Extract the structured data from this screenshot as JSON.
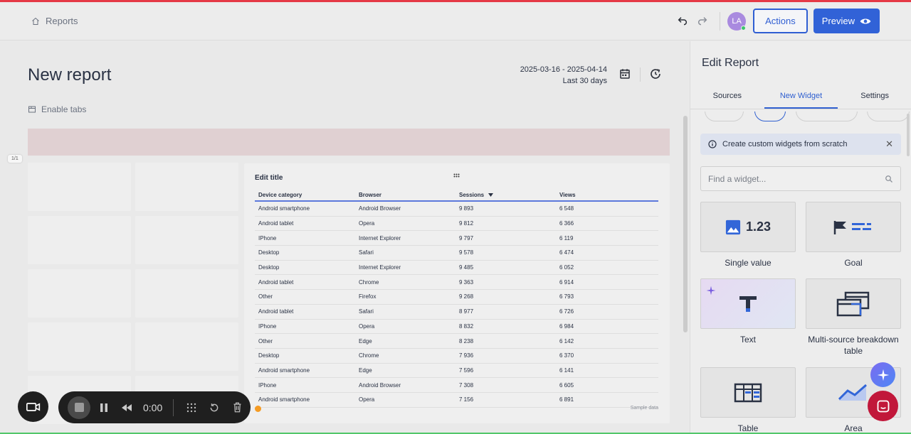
{
  "header": {
    "breadcrumb": "Reports",
    "avatar_initials": "LA",
    "actions_label": "Actions",
    "preview_label": "Preview"
  },
  "report": {
    "title": "New report",
    "date_range": "2025-03-16 - 2025-04-14",
    "date_preset": "Last 30 days",
    "enable_tabs_label": "Enable tabs",
    "page_indicator": "1/1"
  },
  "widget": {
    "title": "Edit title",
    "columns": [
      "Device category",
      "Browser",
      "Sessions",
      "Views"
    ],
    "rows": [
      [
        "Android smartphone",
        "Android Browser",
        "9 893",
        "6 548"
      ],
      [
        "Android tablet",
        "Opera",
        "9 812",
        "6 366"
      ],
      [
        "IPhone",
        "Internet Explorer",
        "9 797",
        "6 119"
      ],
      [
        "Desktop",
        "Safari",
        "9 578",
        "6 474"
      ],
      [
        "Desktop",
        "Internet Explorer",
        "9 485",
        "6 052"
      ],
      [
        "Android tablet",
        "Chrome",
        "9 363",
        "6 914"
      ],
      [
        "Other",
        "Firefox",
        "9 268",
        "6 793"
      ],
      [
        "Android tablet",
        "Safari",
        "8 977",
        "6 726"
      ],
      [
        "IPhone",
        "Opera",
        "8 832",
        "6 984"
      ],
      [
        "Other",
        "Edge",
        "8 238",
        "6 142"
      ],
      [
        "Desktop",
        "Chrome",
        "7 936",
        "6 370"
      ],
      [
        "Android smartphone",
        "Edge",
        "7 596",
        "6 141"
      ],
      [
        "IPhone",
        "Android Browser",
        "7 308",
        "6 605"
      ],
      [
        "Android smartphone",
        "Opera",
        "7 156",
        "6 891"
      ]
    ],
    "sample_label": "Sample data"
  },
  "recorder": {
    "time": "0:00"
  },
  "panel": {
    "title": "Edit Report",
    "tabs": [
      {
        "label": "Sources",
        "active": false
      },
      {
        "label": "New Widget",
        "active": true
      },
      {
        "label": "Settings",
        "active": false
      }
    ],
    "info_text": "Create custom widgets from scratch",
    "search_placeholder": "Find a widget...",
    "single_value_number": "1.23",
    "widgets": [
      {
        "label": "Single value",
        "icon": "single-value-icon"
      },
      {
        "label": "Goal",
        "icon": "goal-flag-icon"
      },
      {
        "label": "Text",
        "icon": "text-t-icon"
      },
      {
        "label": "Multi-source breakdown table",
        "icon": "multi-table-icon"
      },
      {
        "label": "Table",
        "icon": "table-icon"
      },
      {
        "label": "Area",
        "icon": "area-chart-icon"
      }
    ]
  },
  "colors": {
    "accent": "#3162d7",
    "top_bar": "#e53946",
    "chat_fab": "#c1173a"
  }
}
